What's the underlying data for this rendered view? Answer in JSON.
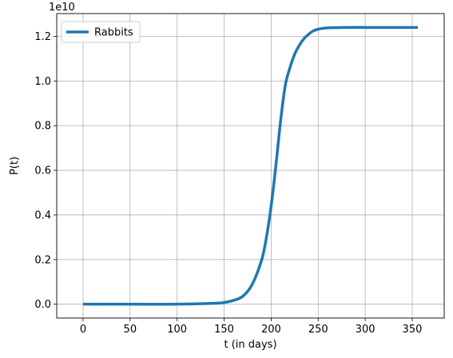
{
  "chart_data": {
    "type": "line",
    "xlabel": "t (in days)",
    "ylabel": "P(t)",
    "offset_label": "1e10",
    "y_scale_factor": 10000000000,
    "xlim": [
      -28,
      384
    ],
    "ylim": [
      -0.062,
      1.302
    ],
    "xticks": [
      0,
      50,
      100,
      150,
      200,
      250,
      300,
      350
    ],
    "xtick_labels": [
      "0",
      "50",
      "100",
      "150",
      "200",
      "250",
      "300",
      "350"
    ],
    "yticks": [
      0.0,
      0.2,
      0.4,
      0.6,
      0.8,
      1.0,
      1.2
    ],
    "ytick_labels": [
      "0.0",
      "0.2",
      "0.4",
      "0.6",
      "0.8",
      "1.0",
      "1.2"
    ],
    "grid": true,
    "legend_position": "top-left",
    "series": [
      {
        "name": "Rabbits",
        "color": "#1f77b4",
        "x": [
          0,
          50,
          100,
          140,
          150,
          160,
          170,
          180,
          190,
          195,
          200,
          205,
          210,
          215,
          220,
          225,
          230,
          235,
          240,
          245,
          250,
          255,
          260,
          270,
          280,
          300,
          320,
          356
        ],
        "y": [
          0.0,
          0.0,
          0.0,
          0.004,
          0.008,
          0.017,
          0.036,
          0.09,
          0.2,
          0.3,
          0.44,
          0.62,
          0.82,
          0.98,
          1.06,
          1.12,
          1.16,
          1.19,
          1.21,
          1.225,
          1.232,
          1.236,
          1.238,
          1.239,
          1.24,
          1.24,
          1.24,
          1.24
        ]
      }
    ]
  }
}
